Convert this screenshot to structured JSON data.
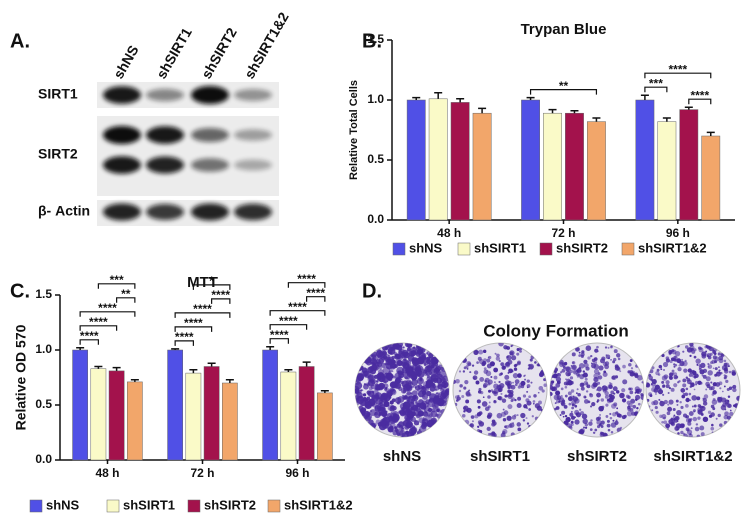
{
  "chart_data": [
    {
      "type": "bar",
      "panel_label": "B.",
      "title": "Trypan Blue",
      "y_label": "Relative Total Cells",
      "categories": [
        "48 h",
        "72 h",
        "96 h"
      ],
      "series": [
        {
          "name": "shNS",
          "color": "#5050e6",
          "values": [
            1.0,
            1.0,
            1.0
          ],
          "errors": [
            0.02,
            0.02,
            0.04
          ]
        },
        {
          "name": "shSIRT1",
          "color": "#fafac8",
          "values": [
            1.01,
            0.89,
            0.82
          ],
          "errors": [
            0.05,
            0.03,
            0.03
          ]
        },
        {
          "name": "shSIRT2",
          "color": "#a3124c",
          "values": [
            0.98,
            0.89,
            0.92
          ],
          "errors": [
            0.03,
            0.02,
            0.02
          ]
        },
        {
          "name": "shSIRT1&2",
          "color": "#f2a66a",
          "values": [
            0.89,
            0.82,
            0.7
          ],
          "errors": [
            0.04,
            0.03,
            0.03
          ]
        }
      ],
      "ylim": [
        0,
        1.5
      ],
      "yticks": [
        {
          "value": 0,
          "label": "0.0"
        },
        0.5,
        {
          "value": 1,
          "label": "1.0"
        },
        1.5
      ],
      "annotations": [
        {
          "text": "**",
          "category": 1,
          "span": [
            0,
            3
          ]
        },
        {
          "text": "***",
          "category": 2,
          "span": [
            0,
            1
          ]
        },
        {
          "text": "****",
          "category": 2,
          "span": [
            2,
            3
          ]
        },
        {
          "text": "****",
          "category": 2,
          "span": [
            0,
            3
          ]
        }
      ]
    },
    {
      "type": "bar",
      "panel_label": "C.",
      "title": "MTT",
      "y_label": "Relative OD 570",
      "categories": [
        "48 h",
        "72 h",
        "96 h"
      ],
      "series": [
        {
          "name": "shNS",
          "color": "#5050e6",
          "values": [
            1.0,
            1.0,
            1.0
          ],
          "errors": [
            0.02,
            0.01,
            0.03
          ]
        },
        {
          "name": "shSIRT1",
          "color": "#fafac8",
          "values": [
            0.83,
            0.79,
            0.8
          ],
          "errors": [
            0.02,
            0.03,
            0.02
          ]
        },
        {
          "name": "shSIRT2",
          "color": "#a3124c",
          "values": [
            0.81,
            0.85,
            0.85
          ],
          "errors": [
            0.03,
            0.03,
            0.04
          ]
        },
        {
          "name": "shSIRT1&2",
          "color": "#f2a66a",
          "values": [
            0.71,
            0.7,
            0.61
          ],
          "errors": [
            0.02,
            0.03,
            0.02
          ]
        }
      ],
      "ylim": [
        0,
        1.5
      ],
      "yticks": [
        {
          "value": 0,
          "label": "0.0"
        },
        0.5,
        {
          "value": 1,
          "label": "1.0"
        },
        1.5
      ],
      "annotations": [
        {
          "text": "****",
          "category": 0,
          "span": [
            0,
            1
          ]
        },
        {
          "text": "****",
          "category": 0,
          "span": [
            0,
            2
          ]
        },
        {
          "text": "****",
          "category": 0,
          "span": [
            0,
            3
          ]
        },
        {
          "text": "**",
          "category": 0,
          "span": [
            2,
            3
          ]
        },
        {
          "text": "***",
          "category": 0,
          "span": [
            1,
            3
          ]
        },
        {
          "text": "****",
          "category": 1,
          "span": [
            0,
            1
          ]
        },
        {
          "text": "****",
          "category": 1,
          "span": [
            0,
            2
          ]
        },
        {
          "text": "****",
          "category": 1,
          "span": [
            0,
            3
          ]
        },
        {
          "text": "****",
          "category": 1,
          "span": [
            2,
            3
          ]
        },
        {
          "text": "*",
          "category": 1,
          "span": [
            1,
            3
          ]
        },
        {
          "text": "****",
          "category": 2,
          "span": [
            0,
            1
          ]
        },
        {
          "text": "****",
          "category": 2,
          "span": [
            0,
            2
          ]
        },
        {
          "text": "****",
          "category": 2,
          "span": [
            0,
            3
          ]
        },
        {
          "text": "****",
          "category": 2,
          "span": [
            2,
            3
          ]
        },
        {
          "text": "****",
          "category": 2,
          "span": [
            1,
            3
          ]
        }
      ]
    }
  ],
  "blot": {
    "panel_label": "A.",
    "lanes": [
      "shNS",
      "shSIRT1",
      "shSIRT2",
      "shSIRT1&2"
    ],
    "proteins": [
      "SIRT1",
      "SIRT2",
      "β- Actin"
    ]
  },
  "colony": {
    "panel_label": "D.",
    "title": "Colony Formation",
    "samples": [
      "shNS",
      "shSIRT1",
      "shSIRT2",
      "shSIRT1&2"
    ]
  }
}
